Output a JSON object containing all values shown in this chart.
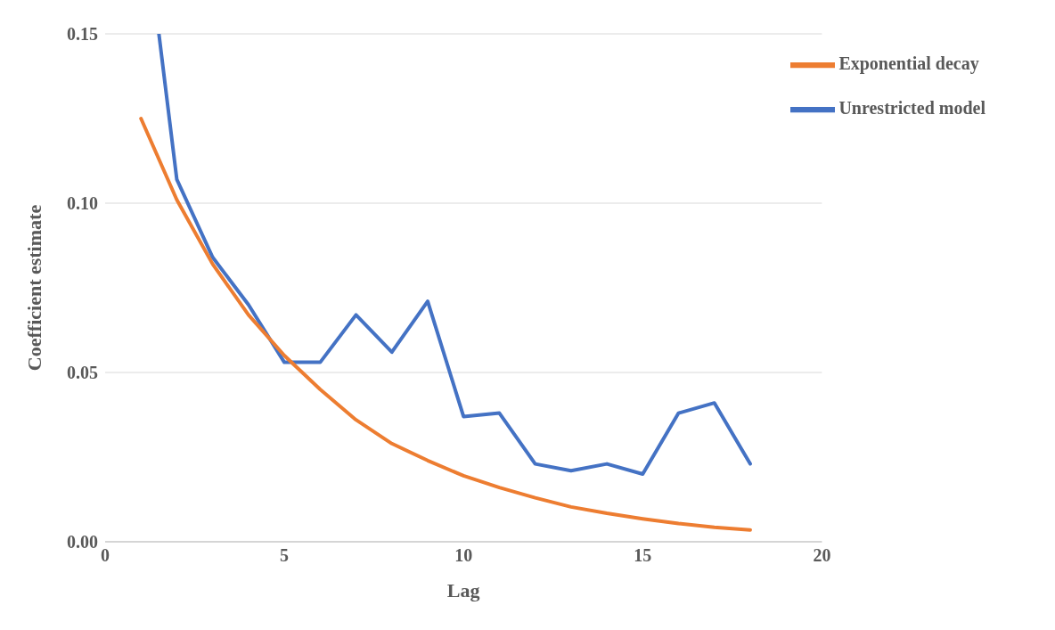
{
  "chart_data": {
    "type": "line",
    "xlabel": "Lag",
    "ylabel": "Coefficient estimate",
    "xlim": [
      0,
      20
    ],
    "xticks": [
      0,
      5,
      10,
      15,
      20
    ],
    "ylim": [
      0,
      0.15
    ],
    "yticks": [
      {
        "value": 0,
        "label": "0.00"
      },
      {
        "value": 0.05,
        "label": "0.05"
      },
      {
        "value": 0.1,
        "label": "0.10"
      },
      {
        "value": 0.15,
        "label": "0.15"
      }
    ],
    "grid": "y",
    "legend": "top right",
    "marker": "none",
    "line_style": "solid",
    "series": [
      {
        "name": "Unrestricted model",
        "color": "#4472c4",
        "x": [
          1.5,
          2,
          3,
          4,
          5,
          6,
          7,
          8,
          9,
          10,
          11,
          12,
          13,
          14,
          15,
          16,
          17,
          18
        ],
        "values": [
          0.15,
          0.107,
          0.084,
          0.07,
          0.053,
          0.053,
          0.067,
          0.056,
          0.071,
          0.037,
          0.038,
          0.023,
          0.021,
          0.023,
          0.02,
          0.038,
          0.041,
          0.023
        ]
      },
      {
        "name": "Exponential decay",
        "color": "#ed7d31",
        "x": [
          1,
          2,
          3,
          4,
          5,
          6,
          7,
          8,
          9,
          10,
          11,
          12,
          13,
          14,
          15,
          16,
          17,
          18
        ],
        "values": [
          0.125,
          0.101,
          0.082,
          0.067,
          0.055,
          0.045,
          0.036,
          0.029,
          0.024,
          0.0195,
          0.016,
          0.013,
          0.0103,
          0.0084,
          0.0068,
          0.0054,
          0.0043,
          0.0035
        ]
      }
    ]
  }
}
